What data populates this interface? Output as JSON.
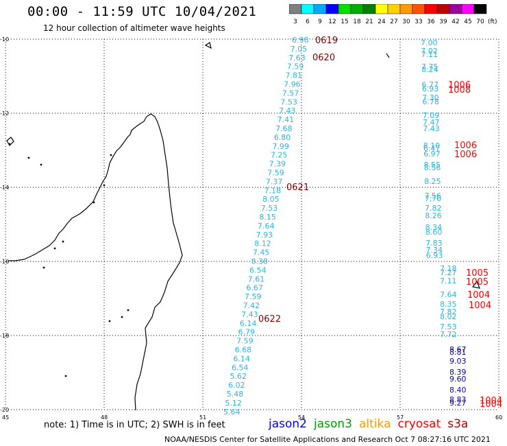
{
  "header": {
    "title": "00:00 - 11:59 UTC 10/04/2021",
    "subtitle": "12 hour collection of altimeter wave heights"
  },
  "color_scale": {
    "unit": "(ft)",
    "bins": [
      {
        "label": "3",
        "color": "#7f7f7f"
      },
      {
        "label": "6",
        "color": "#00ffff"
      },
      {
        "label": "9",
        "color": "#00aaff"
      },
      {
        "label": "12",
        "color": "#0000ff"
      },
      {
        "label": "15",
        "color": "#00e000"
      },
      {
        "label": "18",
        "color": "#00b000"
      },
      {
        "label": "21",
        "color": "#008000"
      },
      {
        "label": "24",
        "color": "#ffff00"
      },
      {
        "label": "27",
        "color": "#ffd000"
      },
      {
        "label": "30",
        "color": "#ff9900"
      },
      {
        "label": "33",
        "color": "#ff5500"
      },
      {
        "label": "36",
        "color": "#ff0000"
      },
      {
        "label": "39",
        "color": "#c00000"
      },
      {
        "label": "42",
        "color": "#a000a0"
      },
      {
        "label": "45",
        "color": "#ff00ff"
      },
      {
        "label": "70",
        "color": "#000000"
      }
    ]
  },
  "map": {
    "lat_labels": [
      "-10",
      "-12",
      "-14",
      "-16",
      "-18",
      "-20"
    ],
    "lon_labels": [
      "45",
      "48",
      "51",
      "54",
      "57",
      "60"
    ]
  },
  "tracks": {
    "track_a": {
      "color": "#29b6e6",
      "values": [
        "6.98",
        "7.05",
        "7.63",
        "7.59",
        "7.81",
        "7.96",
        "7.57",
        "7.53",
        "7.43",
        "7.41",
        "7.68",
        "6.80",
        "7.99",
        "7.25",
        "7.39",
        "7.59",
        "7.37",
        "7.18",
        "8.05",
        "7.53",
        "8.15",
        "7.64",
        "7.93",
        "8.12",
        "7.45",
        "8.38",
        "6.54",
        "7.61",
        "6.67",
        "7.59",
        "7.42",
        "7.43",
        "6.14",
        "6.79",
        "7.59",
        "6.68",
        "6.14",
        "6.54",
        "5.62",
        "6.02",
        "5.48",
        "5.12",
        "5.64"
      ]
    },
    "track_b": {
      "color": "#29b6e6",
      "values": [
        "7.00",
        "7.02",
        "7.11",
        "7.75",
        "8.24",
        "6.77",
        "6.93",
        "7.30",
        "6.78",
        "7.09",
        "7.47",
        "7.43",
        "8.10",
        "6.47",
        "6.97",
        "8.55",
        "8.56",
        "8.25",
        "7.56",
        "7.70",
        "7.82",
        "8.26",
        "8.34",
        "8.60",
        "7.83",
        "7.34",
        "6.93",
        "7.18",
        "7.27",
        "7.11",
        "7.64",
        "8.35",
        "7.82",
        "8.02",
        "7.53",
        "7.72"
      ]
    },
    "track_b_dark": {
      "color": "#0000b0",
      "values": [
        "8.67",
        "8.81",
        "9.03",
        "8.39",
        "9.60",
        "8.40",
        "8.83",
        "9.27"
      ]
    }
  },
  "time_labels": {
    "color": "#800000",
    "values": [
      "0619",
      "0620",
      "0621",
      "0622"
    ]
  },
  "time_labels_red": {
    "color": "#ff0000",
    "values": [
      "1006",
      "1008",
      "1006",
      "1006",
      "1005",
      "1005",
      "1004",
      "1004",
      "1004",
      "1004"
    ]
  },
  "footer": {
    "note": "note: 1) Time is in UTC; 2) SWH is in feet",
    "legend": [
      {
        "label": "jason2",
        "color": "#0000ff"
      },
      {
        "label": "jason3",
        "color": "#00a000"
      },
      {
        "label": "altika",
        "color": "#ff9900"
      },
      {
        "label": "cryosat",
        "color": "#ff0000"
      },
      {
        "label": "s3a",
        "color": "#b00000"
      }
    ],
    "credit": "NOAA/NESDIS Center for Satellite Applications and Research   Oct  7 08:27:16 UTC 2021"
  }
}
